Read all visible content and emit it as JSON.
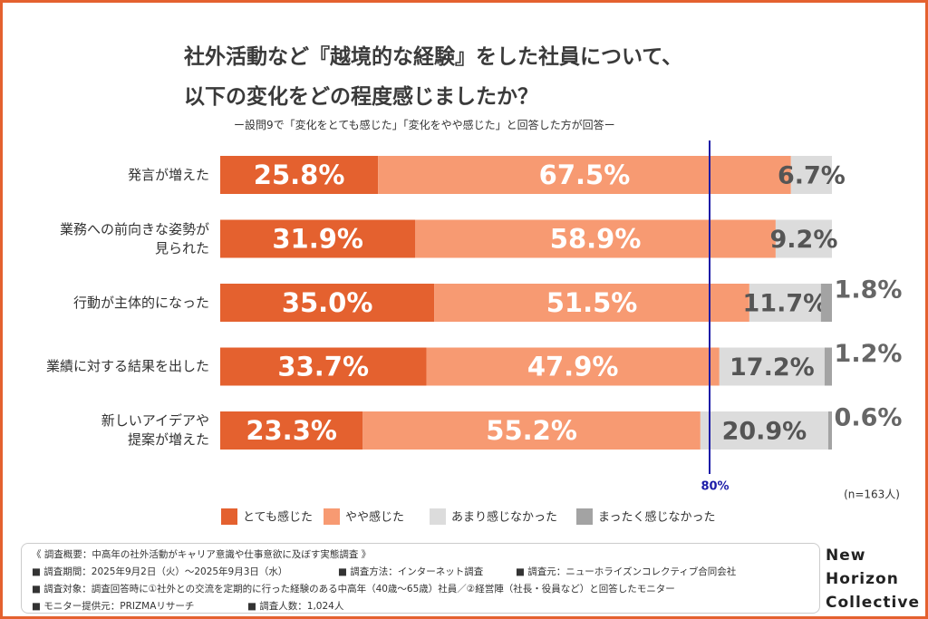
{
  "chart_data": {
    "type": "stacked-barh",
    "title": "社外活動など『越境的な経験』をした社員について、\n以下の変化をどの程度感じましたか？",
    "subtitle": "ー設問9で「変化をとても感じた」「変化をやや感じた」と回答した方が回答ー",
    "categories": [
      "発言が増えた",
      "業務への前向きな姿勢が\n見られた",
      "行動が主体的になった",
      "業績に対する結果を出した",
      "新しいアイデアや\n提案が増えた"
    ],
    "xlim": [
      0,
      100
    ],
    "series": [
      {
        "name": "とても感じた",
        "color": "#e4612f",
        "values": [
          25.8,
          31.9,
          35.0,
          33.7,
          23.3
        ],
        "value_labels": [
          "25.8%",
          "31.9%",
          "35.0%",
          "33.7%",
          "23.3%"
        ]
      },
      {
        "name": "やや感じた",
        "color": "#f79a72",
        "values": [
          67.5,
          58.9,
          51.5,
          47.9,
          55.2
        ],
        "value_labels": [
          "67.5%",
          "58.9%",
          "51.5%",
          "47.9%",
          "55.2%"
        ]
      },
      {
        "name": "あまり感じなかった",
        "color": "#dcdcdc",
        "values": [
          6.7,
          9.2,
          11.7,
          17.2,
          20.9
        ],
        "value_labels": [
          "6.7%",
          "9.2%",
          "11.7%",
          "17.2%",
          "20.9%"
        ]
      },
      {
        "name": "まったく感じなかった",
        "color": "#a3a3a3",
        "values": [
          null,
          null,
          1.8,
          1.2,
          0.6
        ],
        "value_labels": [
          null,
          null,
          "1.8%",
          "1.2%",
          "0.6%"
        ]
      }
    ],
    "reference_line": {
      "value": 80,
      "label": "80%",
      "color": "#1c1ca8"
    },
    "note": "(n=163人)"
  },
  "footer": {
    "title": "《 調査概要：中高年の社外活動がキャリア意識や仕事意欲に及ぼす実態調査 》",
    "items": [
      "■ 調査期間：2025年9月2日（火）～2025年9月3日（水）",
      "■ 調査方法：インターネット調査",
      "■ 調査元：ニューホライズンコレクティブ合同会社",
      "■ 調査対象：調査回答時に①社外との交流を定期的に行った経験のある中高年（40歳～65歳）社員／②経営陣（社長・役員など）と回答したモニター",
      "■ モニター提供元：PRIZMAリサーチ",
      "■ 調査人数：1,024人"
    ]
  },
  "brand": "New\nHorizon\nCollective"
}
